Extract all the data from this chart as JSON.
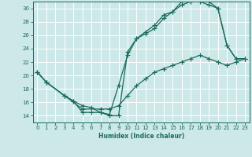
{
  "xlabel": "Humidex (Indice chaleur)",
  "bg_color": "#cce8e8",
  "grid_color": "#ffffff",
  "line_color": "#1a6b5a",
  "xlim": [
    -0.5,
    23.5
  ],
  "ylim": [
    13,
    31
  ],
  "xticks": [
    0,
    1,
    2,
    3,
    4,
    5,
    6,
    7,
    8,
    9,
    10,
    11,
    12,
    13,
    14,
    15,
    16,
    17,
    18,
    19,
    20,
    21,
    22,
    23
  ],
  "yticks": [
    14,
    16,
    18,
    20,
    22,
    24,
    26,
    28,
    30
  ],
  "line1_x": [
    0,
    1,
    3,
    4,
    5,
    6,
    7,
    8,
    9,
    10,
    11,
    12,
    13,
    14,
    15,
    16,
    17,
    18,
    19,
    20,
    21,
    22,
    23
  ],
  "line1_y": [
    20.5,
    19,
    17,
    16.2,
    15.5,
    15.2,
    14.5,
    14.2,
    18.5,
    23,
    25.5,
    26.2,
    27,
    28.5,
    29.5,
    30.5,
    31,
    31,
    31,
    30,
    24.5,
    22.5,
    22.5
  ],
  "line2_x": [
    0,
    1,
    3,
    4,
    5,
    6,
    7,
    8,
    9,
    10,
    11,
    12,
    13,
    14,
    15,
    16,
    17,
    18,
    19,
    20,
    21,
    22,
    23
  ],
  "line2_y": [
    20.5,
    19,
    17,
    16.2,
    14.5,
    14.5,
    14.5,
    14,
    14,
    23.5,
    25.5,
    26.5,
    27.5,
    29,
    29.5,
    31,
    31,
    31,
    30.5,
    30,
    24.5,
    22.5,
    22.5
  ],
  "line3_x": [
    0,
    1,
    3,
    5,
    7,
    8,
    9,
    10,
    11,
    12,
    13,
    14,
    15,
    16,
    17,
    18,
    19,
    20,
    21,
    22,
    23
  ],
  "line3_y": [
    20.5,
    19,
    17,
    15,
    15,
    15,
    15.5,
    17,
    18.5,
    19.5,
    20.5,
    21,
    21.5,
    22,
    22.5,
    23,
    22.5,
    22,
    21.5,
    22,
    22.5
  ]
}
